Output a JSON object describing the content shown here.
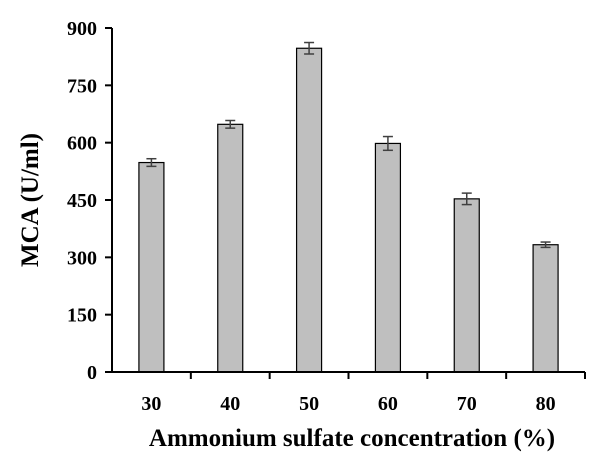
{
  "chart_data": {
    "type": "bar",
    "title": "",
    "xlabel": "Ammonium sulfate concentration (%)",
    "ylabel": "MCA (U/ml)",
    "categories": [
      "30",
      "40",
      "50",
      "60",
      "70",
      "80"
    ],
    "values": [
      548,
      648,
      847,
      598,
      453,
      333
    ],
    "errors": [
      10,
      10,
      15,
      18,
      15,
      7
    ],
    "ylim": [
      0,
      900
    ],
    "yticks": [
      0,
      150,
      300,
      450,
      600,
      750,
      900
    ],
    "grid": false,
    "legend": "none",
    "colors": {
      "bar_fill": "#bfbfbf",
      "bar_stroke": "#000000",
      "error_bar": "#404040",
      "axis": "#000000"
    }
  }
}
